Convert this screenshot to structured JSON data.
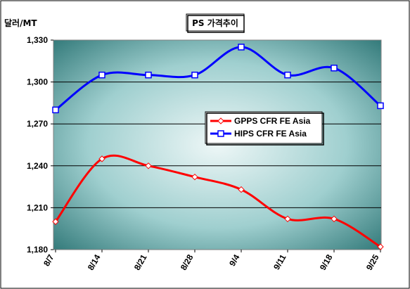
{
  "chart_data": {
    "type": "line",
    "title": "PS 가격추이",
    "ylabel": "달러/MT",
    "categories": [
      "8/7",
      "8/14",
      "8/21",
      "8/28",
      "9/4",
      "9/11",
      "9/18",
      "9/25"
    ],
    "ylim": [
      1180,
      1330
    ],
    "yticks": [
      1180,
      1210,
      1240,
      1270,
      1300,
      1330
    ],
    "ytick_labels": [
      "1,180",
      "1,210",
      "1,240",
      "1,270",
      "1,300",
      "1,330"
    ],
    "grid": "horizontal",
    "legend_position": "right-middle",
    "series": [
      {
        "name": "GPPS CFR FE Asia",
        "color": "#ff0000",
        "marker": "diamond",
        "values": [
          1200,
          1245,
          1240,
          1232,
          1223,
          1202,
          1202,
          1182
        ]
      },
      {
        "name": "HIPS CFR FE Asia",
        "color": "#0000ff",
        "marker": "square",
        "values": [
          1280,
          1305,
          1305,
          1305,
          1325,
          1305,
          1310,
          1283
        ]
      }
    ]
  }
}
